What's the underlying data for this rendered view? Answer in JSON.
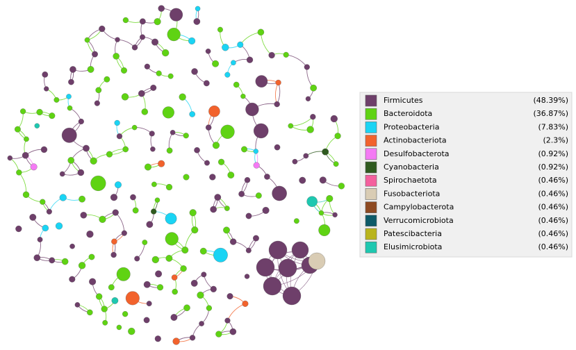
{
  "legend": {
    "items": [
      {
        "name": "Firmicutes",
        "percent": "(48.39%)",
        "color": "#6e3f6a"
      },
      {
        "name": "Bacteroidota",
        "percent": "(36.87%)",
        "color": "#5fd313"
      },
      {
        "name": "Proteobacteria",
        "percent": "(7.83%)",
        "color": "#1ad4f4"
      },
      {
        "name": "Actinobacteriota",
        "percent": "(2.3%)",
        "color": "#f2622c"
      },
      {
        "name": "Desulfobacterota",
        "percent": "(0.92%)",
        "color": "#f47af4"
      },
      {
        "name": "Cyanobacteria",
        "percent": "(0.92%)",
        "color": "#2f5a1f"
      },
      {
        "name": "Spirochaetota",
        "percent": "(0.46%)",
        "color": "#f4609e"
      },
      {
        "name": "Fusobacteriota",
        "percent": "(0.46%)",
        "color": "#d9ccb4"
      },
      {
        "name": "Campylobacterota",
        "percent": "(0.46%)",
        "color": "#8e4a22"
      },
      {
        "name": "Verrucomicrobiota",
        "percent": "(0.46%)",
        "color": "#0d5a68"
      },
      {
        "name": "Patescibacteria",
        "percent": "(0.46%)",
        "color": "#b9b41c"
      },
      {
        "name": "Elusimicrobiota",
        "percent": "(0.46%)",
        "color": "#1ec8b0"
      }
    ]
  }
}
